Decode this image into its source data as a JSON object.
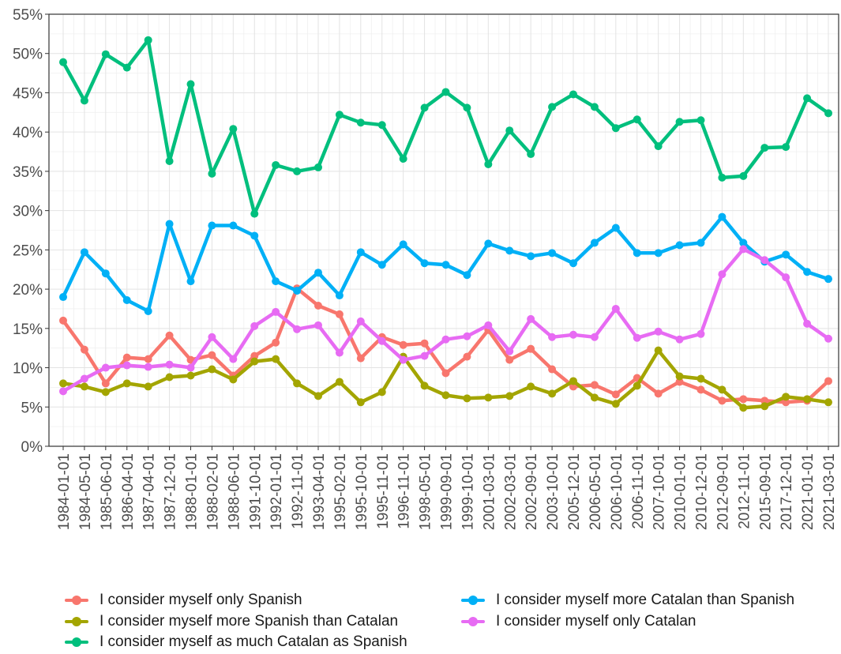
{
  "chart_data": {
    "type": "line",
    "title": "",
    "xlabel": "",
    "ylabel": "",
    "ylim": [
      0,
      55
    ],
    "yticks": [
      "0%",
      "5%",
      "10%",
      "15%",
      "20%",
      "25%",
      "30%",
      "35%",
      "40%",
      "45%",
      "50%",
      "55%"
    ],
    "grid": true,
    "legend_position": "bottom",
    "categories": [
      "1984-01-01",
      "1984-05-01",
      "1985-06-01",
      "1986-04-01",
      "1987-04-01",
      "1987-12-01",
      "1988-01-01",
      "1988-02-01",
      "1988-06-01",
      "1991-10-01",
      "1992-01-01",
      "1992-11-01",
      "1993-04-01",
      "1995-02-01",
      "1995-10-01",
      "1995-11-01",
      "1996-11-01",
      "1998-05-01",
      "1999-09-01",
      "1999-10-01",
      "2001-03-01",
      "2002-03-01",
      "2002-09-01",
      "2003-10-01",
      "2005-12-01",
      "2006-05-01",
      "2006-10-01",
      "2006-11-01",
      "2007-10-01",
      "2010-01-01",
      "2010-12-01",
      "2012-09-01",
      "2012-11-01",
      "2015-09-01",
      "2017-12-01",
      "2021-01-01",
      "2021-03-01"
    ],
    "series": [
      {
        "name": "I consider myself only Spanish",
        "color": "#F8766D",
        "values": [
          16.0,
          12.3,
          8.0,
          11.3,
          11.1,
          14.1,
          11.0,
          11.6,
          9.0,
          11.5,
          13.2,
          20.1,
          17.9,
          16.8,
          11.2,
          13.9,
          12.9,
          13.1,
          9.3,
          11.4,
          14.8,
          11.0,
          12.4,
          9.8,
          7.6,
          7.8,
          6.6,
          8.7,
          6.7,
          8.2,
          7.2,
          5.8,
          6.0,
          5.8,
          5.6,
          5.8,
          8.3
        ]
      },
      {
        "name": "I consider myself more Spanish than Catalan",
        "color": "#A3A500",
        "values": [
          8.0,
          7.6,
          6.9,
          8.0,
          7.6,
          8.8,
          9.0,
          9.8,
          8.5,
          10.8,
          11.1,
          8.0,
          6.4,
          8.2,
          5.6,
          6.9,
          11.4,
          7.7,
          6.5,
          6.1,
          6.2,
          6.4,
          7.6,
          6.7,
          8.3,
          6.2,
          5.4,
          7.7,
          12.2,
          8.9,
          8.6,
          7.2,
          4.9,
          5.1,
          6.3,
          6.0,
          5.6
        ]
      },
      {
        "name": "I consider myself as much Catalan as Spanish",
        "color": "#00BF7D",
        "values": [
          48.9,
          44.0,
          49.9,
          48.2,
          51.7,
          36.3,
          46.1,
          34.7,
          40.4,
          29.6,
          35.8,
          35.0,
          35.5,
          42.2,
          41.2,
          40.9,
          36.6,
          43.1,
          45.1,
          43.1,
          35.9,
          40.2,
          37.2,
          43.2,
          44.8,
          43.2,
          40.5,
          41.6,
          38.2,
          41.3,
          41.5,
          34.2,
          34.4,
          38.0,
          38.1,
          44.3,
          42.4
        ]
      },
      {
        "name": "I consider myself more Catalan than Spanish",
        "color": "#00B0F6",
        "values": [
          19.0,
          24.7,
          22.0,
          18.6,
          17.2,
          28.3,
          21.0,
          28.1,
          28.1,
          26.8,
          21.0,
          19.8,
          22.1,
          19.2,
          24.7,
          23.1,
          25.7,
          23.3,
          23.1,
          21.8,
          25.8,
          24.9,
          24.2,
          24.6,
          23.3,
          25.9,
          27.8,
          24.6,
          24.6,
          25.6,
          25.9,
          29.2,
          25.9,
          23.5,
          24.4,
          22.2,
          21.3
        ]
      },
      {
        "name": "I consider myself only Catalan",
        "color": "#E76BF3",
        "values": [
          7.0,
          8.6,
          10.0,
          10.3,
          10.1,
          10.4,
          10.0,
          13.9,
          11.1,
          15.3,
          17.1,
          14.9,
          15.4,
          11.9,
          15.9,
          13.4,
          11.0,
          11.5,
          13.6,
          14.0,
          15.4,
          12.1,
          16.2,
          13.9,
          14.2,
          13.9,
          17.5,
          13.8,
          14.6,
          13.6,
          14.3,
          21.9,
          25.1,
          23.7,
          21.5,
          15.6,
          13.7
        ]
      }
    ]
  },
  "legend": {
    "items": [
      {
        "label": "I consider myself only Spanish",
        "color": "#F8766D"
      },
      {
        "label": "I consider myself more Spanish than Catalan",
        "color": "#A3A500"
      },
      {
        "label": "I consider myself as much Catalan as Spanish",
        "color": "#00BF7D"
      },
      {
        "label": "I consider myself more Catalan than Spanish",
        "color": "#00B0F6"
      },
      {
        "label": "I consider myself only Catalan",
        "color": "#E76BF3"
      }
    ]
  }
}
